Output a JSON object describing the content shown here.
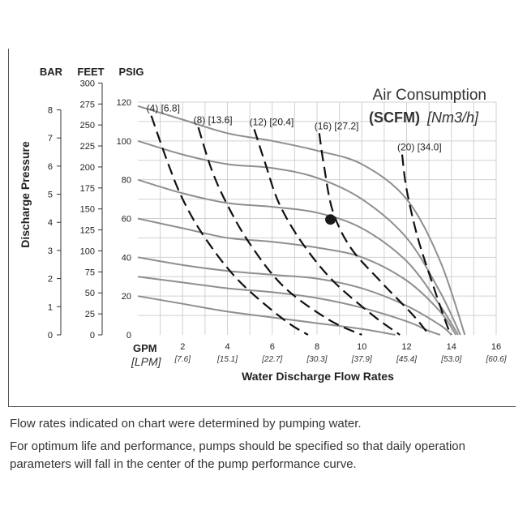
{
  "chart_data": {
    "type": "line",
    "title": "Air Consumption",
    "subtitle_bold": "(SCFM)",
    "subtitle_italic": "[Nm3/h]",
    "xlabel": "Water Discharge Flow Rates",
    "x_unit_primary": "GPM",
    "x_unit_secondary": "[LPM]",
    "ylabel": "Discharge Pressure",
    "y_unit_headers": [
      "BAR",
      "FEET",
      "PSIG"
    ],
    "xlim": [
      0,
      16
    ],
    "ylim": [
      0,
      120
    ],
    "x_ticks_gpm": [
      2,
      4,
      6,
      8,
      10,
      12,
      14,
      16
    ],
    "x_ticks_lpm": [
      "[7.6]",
      "[15.1]",
      "[22.7]",
      "[30.3]",
      "[37.9]",
      "[45.4]",
      "[53.0]",
      "[60.6]"
    ],
    "psig_ticks": [
      0,
      20,
      40,
      60,
      80,
      100,
      120
    ],
    "feet_ticks": [
      0,
      25,
      50,
      75,
      100,
      125,
      150,
      175,
      200,
      225,
      250,
      275,
      300
    ],
    "bar_ticks": [
      0,
      1,
      2,
      3,
      4,
      5,
      6,
      7,
      8
    ],
    "pressure_curves": [
      {
        "name": "curve-20psig",
        "points": [
          [
            0,
            20
          ],
          [
            2,
            16
          ],
          [
            4,
            12
          ],
          [
            6,
            9
          ],
          [
            8,
            6
          ],
          [
            10,
            3
          ],
          [
            11.5,
            0
          ]
        ]
      },
      {
        "name": "curve-30psig",
        "points": [
          [
            0,
            30
          ],
          [
            2,
            27
          ],
          [
            4,
            24
          ],
          [
            6,
            22
          ],
          [
            8,
            19
          ],
          [
            10,
            14
          ],
          [
            12,
            7
          ],
          [
            13,
            2
          ],
          [
            13.5,
            0
          ]
        ]
      },
      {
        "name": "curve-40psig",
        "points": [
          [
            0,
            40
          ],
          [
            2,
            36
          ],
          [
            4,
            33
          ],
          [
            6,
            31
          ],
          [
            8,
            29
          ],
          [
            10,
            24
          ],
          [
            12,
            15
          ],
          [
            13.5,
            5
          ],
          [
            14,
            0
          ]
        ]
      },
      {
        "name": "curve-60psig",
        "points": [
          [
            0,
            60
          ],
          [
            2,
            55
          ],
          [
            4,
            50
          ],
          [
            6,
            48
          ],
          [
            8,
            45
          ],
          [
            10,
            40
          ],
          [
            12,
            28
          ],
          [
            13.5,
            12
          ],
          [
            14.2,
            0
          ]
        ]
      },
      {
        "name": "curve-80psig",
        "points": [
          [
            0,
            80
          ],
          [
            2,
            73
          ],
          [
            4,
            68
          ],
          [
            6,
            66
          ],
          [
            8,
            63
          ],
          [
            10,
            55
          ],
          [
            12,
            38
          ],
          [
            13.5,
            15
          ],
          [
            14.3,
            0
          ]
        ]
      },
      {
        "name": "curve-100psig",
        "points": [
          [
            0,
            100
          ],
          [
            2,
            93
          ],
          [
            4,
            88
          ],
          [
            6,
            86
          ],
          [
            8,
            81
          ],
          [
            10,
            70
          ],
          [
            12,
            50
          ],
          [
            13.5,
            22
          ],
          [
            14.4,
            0
          ]
        ]
      },
      {
        "name": "curve-120psig",
        "points": [
          [
            0,
            118
          ],
          [
            2,
            111
          ],
          [
            4,
            104
          ],
          [
            6,
            100
          ],
          [
            8,
            95
          ],
          [
            10,
            88
          ],
          [
            12,
            70
          ],
          [
            13.5,
            38
          ],
          [
            14.6,
            0
          ]
        ]
      }
    ],
    "air_consumption_curves": [
      {
        "label": "(4) [6.8]",
        "points": [
          [
            0.6,
            113
          ],
          [
            1.3,
            90
          ],
          [
            2,
            70
          ],
          [
            3,
            50
          ],
          [
            4.5,
            28
          ],
          [
            6.5,
            8
          ],
          [
            7.6,
            0
          ]
        ]
      },
      {
        "label": "(8) [13.6]",
        "points": [
          [
            2.7,
            107
          ],
          [
            3.3,
            85
          ],
          [
            4,
            67
          ],
          [
            5,
            47
          ],
          [
            6.5,
            25
          ],
          [
            8.5,
            8
          ],
          [
            10,
            0
          ]
        ]
      },
      {
        "label": "(12) [20.4]",
        "points": [
          [
            5.2,
            106
          ],
          [
            5.7,
            88
          ],
          [
            6.3,
            68
          ],
          [
            7.3,
            48
          ],
          [
            8.7,
            28
          ],
          [
            10.5,
            10
          ],
          [
            11.7,
            0
          ]
        ]
      },
      {
        "label": "(16) [27.2]",
        "points": [
          [
            8.1,
            104
          ],
          [
            8.3,
            88
          ],
          [
            8.7,
            64
          ],
          [
            9.5,
            45
          ],
          [
            10.8,
            28
          ],
          [
            12.3,
            10
          ],
          [
            13,
            0
          ]
        ]
      },
      {
        "label": "(20) [34.0]",
        "points": [
          [
            11.8,
            93
          ],
          [
            12,
            75
          ],
          [
            12.5,
            50
          ],
          [
            13.2,
            25
          ],
          [
            13.8,
            5
          ],
          [
            14,
            0
          ]
        ]
      }
    ],
    "operating_point": {
      "x": 8.6,
      "y": 59.5
    }
  },
  "footnotes": {
    "line1": "Flow rates indicated on chart were determined by pumping water.",
    "line2": "For optimum life and performance, pumps should be specified so that daily operation parameters will fall in the center of the pump performance curve."
  }
}
